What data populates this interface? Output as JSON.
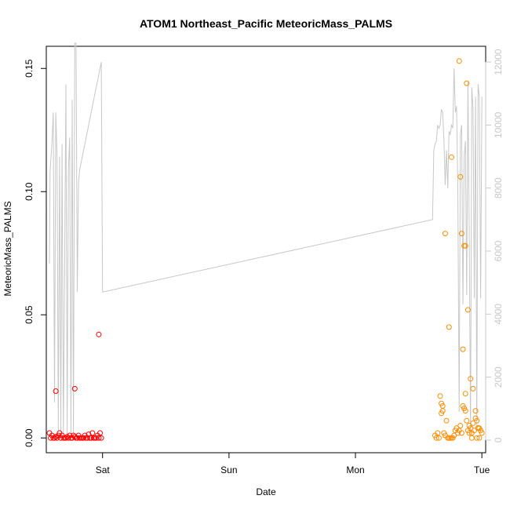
{
  "chart_data": {
    "type": "scatter",
    "title": "ATOM1 Northeast_Pacific MeteoricMass_PALMS",
    "xlabel": "Date",
    "ylabel": "MeteoricMass_PALMS",
    "x_ticks": [
      "Sat",
      "Sun",
      "Mon",
      "Tue"
    ],
    "x_tick_days": [
      1,
      2,
      3,
      4
    ],
    "xlim": [
      0.555,
      4.03
    ],
    "ylim": [
      -0.006,
      0.159
    ],
    "y_ticks": [
      0.0,
      0.05,
      0.1,
      0.15
    ],
    "y_tick_labels": [
      "0.00",
      "0.05",
      "0.10",
      "0.15"
    ],
    "y2lim": [
      -400,
      12500
    ],
    "y2_ticks": [
      0,
      2000,
      4000,
      6000,
      8000,
      10000,
      12000
    ],
    "y2_tick_labels": [
      "0",
      "2000",
      "4000",
      "6000",
      "8000",
      "10000",
      "12000"
    ],
    "grid": false,
    "colors": {
      "series_1": "#ff0000",
      "series_2": "#ff8c00",
      "altitude_line": "#c8c8c8",
      "axis": "#000000",
      "right_axis": "#c8c8c8"
    },
    "series": [
      {
        "color": "#ff0000",
        "x": [
          0.58,
          0.59,
          0.6,
          0.61,
          0.62,
          0.63,
          0.64,
          0.65,
          0.66,
          0.67,
          0.68,
          0.69,
          0.7,
          0.71,
          0.72,
          0.73,
          0.74,
          0.75,
          0.76,
          0.77,
          0.78,
          0.79,
          0.8,
          0.81,
          0.82,
          0.83,
          0.84,
          0.85,
          0.86,
          0.87,
          0.88,
          0.89,
          0.9,
          0.91,
          0.92,
          0.93,
          0.94,
          0.95,
          0.96,
          0.97,
          0.98,
          0.99,
          0.63,
          0.78,
          0.97
        ],
        "y": [
          0.002,
          0.0,
          0.001,
          0.0,
          0.0,
          0.0005,
          0.0,
          0.001,
          0.002,
          0.0,
          0.001,
          0.0,
          0.0,
          0.0,
          0.0005,
          0.0,
          0.001,
          0.0,
          0.0,
          0.001,
          0.0005,
          0.0,
          0.0,
          0.001,
          0.0,
          0.0,
          0.0,
          0.0,
          0.001,
          0.0,
          0.0,
          0.0015,
          0.0,
          0.0,
          0.002,
          0.0,
          0.0,
          0.0,
          0.001,
          0.0,
          0.002,
          0.0,
          0.019,
          0.02,
          0.042
        ]
      },
      {
        "color": "#ff8c00",
        "x": [
          3.63,
          3.64,
          3.65,
          3.66,
          3.67,
          3.68,
          3.69,
          3.7,
          3.71,
          3.72,
          3.73,
          3.74,
          3.75,
          3.76,
          3.77,
          3.78,
          3.79,
          3.8,
          3.81,
          3.82,
          3.83,
          3.84,
          3.85,
          3.86,
          3.87,
          3.88,
          3.89,
          3.9,
          3.91,
          3.92,
          3.93,
          3.94,
          3.95,
          3.96,
          3.97,
          3.98,
          3.99,
          4.0,
          3.82,
          3.88,
          3.71,
          3.76,
          3.84,
          3.87,
          3.89,
          3.91,
          3.86,
          3.93,
          3.95,
          3.97,
          3.85,
          3.87,
          3.68,
          3.69,
          3.92,
          3.96,
          3.98,
          3.9,
          3.74,
          3.83
        ],
        "y": [
          0.001,
          0.0,
          0.002,
          0.0,
          0.017,
          0.014,
          0.013,
          0.002,
          0.001,
          0.007,
          0.0,
          0.0,
          0.0,
          0.0,
          0.0,
          0.001,
          0.003,
          0.004,
          0.002,
          0.003,
          0.005,
          0.002,
          0.013,
          0.012,
          0.011,
          0.007,
          0.003,
          0.005,
          0.004,
          0.002,
          0.006,
          0.003,
          0.008,
          0.007,
          0.004,
          0.004,
          0.003,
          0.002,
          0.153,
          0.144,
          0.083,
          0.114,
          0.083,
          0.078,
          0.052,
          0.024,
          0.078,
          0.02,
          0.011,
          0.004,
          0.036,
          0.018,
          0.01,
          0.011,
          0.0,
          0.0,
          0.0,
          0.002,
          0.045,
          0.106
        ]
      }
    ],
    "altitude_line": {
      "axis": "right",
      "x": [
        0.58,
        0.585,
        0.6,
        0.61,
        0.62,
        0.63,
        0.64,
        0.65,
        0.66,
        0.67,
        0.68,
        0.69,
        0.7,
        0.71,
        0.72,
        0.73,
        0.74,
        0.75,
        0.76,
        0.77,
        0.78,
        0.79,
        0.8,
        0.81,
        0.82,
        0.83,
        0.84,
        0.85,
        0.86,
        0.87,
        0.88,
        0.89,
        0.9,
        0.91,
        0.92,
        0.93,
        0.94,
        0.95,
        0.96,
        0.97,
        0.98,
        0.99,
        1.0,
        3.61,
        3.62,
        3.63,
        3.64,
        3.65,
        3.66,
        3.67,
        3.68,
        3.69,
        3.7,
        3.71,
        3.72,
        3.73,
        3.74,
        3.75,
        3.76,
        3.77,
        3.78,
        3.79,
        3.8,
        3.81,
        3.82,
        3.83,
        3.84,
        3.85,
        3.86,
        3.87,
        3.88,
        3.89,
        3.9,
        3.91,
        3.92,
        3.93,
        3.94,
        3.95,
        3.96,
        3.97,
        3.98,
        3.99,
        4.0
      ],
      "y": [
        5600,
        8500,
        9500,
        10400,
        1200,
        10400,
        9000,
        300,
        9000,
        200,
        9400,
        200,
        5500,
        11300,
        200,
        8600,
        9600,
        200,
        10800,
        200,
        12600,
        12600,
        4700,
        8200,
        8600,
        8800,
        9000,
        9200,
        9400,
        9600,
        9800,
        10000,
        10200,
        10400,
        10600,
        10800,
        11000,
        11200,
        11400,
        11600,
        11800,
        12000,
        4700,
        7000,
        9200,
        9400,
        9500,
        10000,
        9900,
        10000,
        10500,
        10400,
        9500,
        8100,
        9200,
        8000,
        9800,
        9700,
        10000,
        9900,
        11800,
        10400,
        10600,
        8000,
        900,
        9700,
        10000,
        4300,
        9000,
        9500,
        4600,
        11400,
        6400,
        200,
        11200,
        10500,
        4500,
        10900,
        300,
        11300,
        10900,
        4500,
        10900
      ]
    }
  }
}
